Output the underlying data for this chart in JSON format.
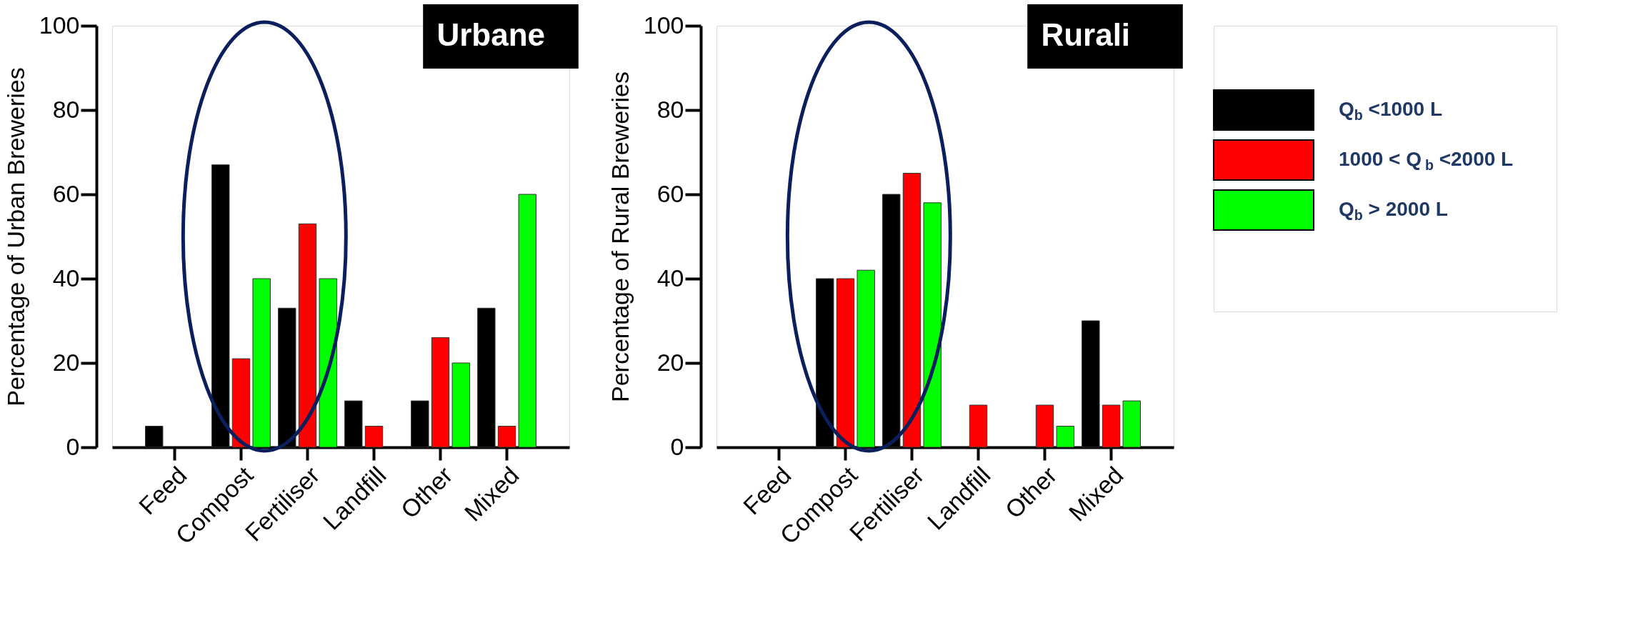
{
  "chart_data": [
    {
      "type": "bar",
      "title": "Urbane",
      "ylabel": "Percentage of Urban Breweries",
      "categories": [
        "Feed",
        "Compost",
        "Fertiliser",
        "Landfill",
        "Other",
        "Mixed"
      ],
      "ylim": [
        0,
        100
      ],
      "yticks": [
        0,
        20,
        40,
        60,
        80,
        100
      ],
      "series": [
        {
          "color": "#000000",
          "values": [
            5,
            67,
            33,
            11,
            11,
            33
          ]
        },
        {
          "color": "#ff0000",
          "values": [
            null,
            21,
            53,
            5,
            26,
            5
          ]
        },
        {
          "color": "#00ff00",
          "values": [
            null,
            40,
            40,
            null,
            20,
            60
          ]
        }
      ]
    },
    {
      "type": "bar",
      "title": "Rurali",
      "ylabel": "Percentage of Rural Breweries",
      "categories": [
        "Feed",
        "Compost",
        "Fertiliser",
        "Landfill",
        "Other",
        "Mixed"
      ],
      "ylim": [
        0,
        100
      ],
      "yticks": [
        0,
        20,
        40,
        60,
        80,
        100
      ],
      "legend": "right",
      "series": [
        {
          "name": "Q$_{b}$ <1000 L",
          "color": "#000000",
          "values": [
            null,
            40,
            60,
            null,
            null,
            30
          ]
        },
        {
          "name": "1000 < Q$_{b}$ <2000 L",
          "color": "#ff0000",
          "values": [
            null,
            40,
            65,
            10,
            10,
            10
          ]
        },
        {
          "name": "Q$_{b}$ > 2000 L",
          "color": "#00ff00",
          "values": [
            null,
            42,
            58,
            null,
            5,
            11
          ]
        }
      ]
    }
  ]
}
